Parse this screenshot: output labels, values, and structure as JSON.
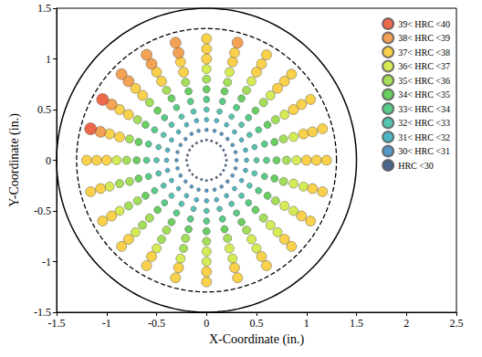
{
  "chart_data": {
    "type": "scatter",
    "xlabel": "X-Coordinate (in.)",
    "ylabel": "Y-Coordinate (in.)",
    "xlim": [
      -1.5,
      2.5
    ],
    "xticks": [
      -1.5,
      -1,
      -0.5,
      0,
      0.5,
      1,
      1.5,
      2,
      2.5
    ],
    "ylim": [
      -1.5,
      1.5
    ],
    "yticks": [
      -1.5,
      -1,
      -0.5,
      0,
      0.5,
      1,
      1.5
    ],
    "grid": false,
    "legend": "top-right",
    "marker": "circle",
    "circles": [
      {
        "radius": 1.5,
        "line_style": "solid"
      },
      {
        "radius": 1.3,
        "line_style": "dashed"
      }
    ],
    "series": [
      {
        "name": "39< HRC <40",
        "color": "#e8431b",
        "x": [
          -1.04,
          -1.16
        ],
        "values": [
          0.6,
          0.31
        ]
      },
      {
        "name": "38< HRC <39",
        "color": "#f08a2b",
        "x": [
          -0.28,
          -0.55,
          -0.78,
          -0.95,
          -1.06,
          0.31,
          -0.31,
          -0.6,
          -0.85
        ],
        "values": [
          1.06,
          0.95,
          0.78,
          0.55,
          0.28,
          1.16,
          1.16,
          1.04,
          0.85
        ]
      },
      {
        "name": "37< HRC <38",
        "color": "#f7c51e",
        "x": [
          -0.23,
          -0.45,
          -0.64,
          -0.78,
          -0.87,
          1,
          0.97,
          0.87,
          0.71,
          0.5,
          0.26,
          0,
          -1,
          -0.26,
          -0.5,
          -0.71,
          -0.87,
          -0.97,
          1.1,
          1.06,
          0.95,
          0.78,
          0.55,
          0.28,
          0,
          -1.1,
          -1.06,
          -0.95,
          -0.78,
          -0.55,
          -0.28,
          0,
          0.28,
          0.55,
          0.78,
          0.95,
          1.06,
          1.2,
          1.16,
          1.04,
          0.85,
          0.6,
          0,
          -1.2,
          -1.16,
          -1.04,
          -0.85,
          -0.6,
          -0.31,
          0,
          0.31,
          0.6,
          0.85,
          1.04,
          1.16
        ],
        "values": [
          0.87,
          0.78,
          0.64,
          0.45,
          0.23,
          0,
          0.26,
          0.5,
          0.71,
          0.87,
          0.97,
          1,
          0,
          0.97,
          0.87,
          0.71,
          0.5,
          0.26,
          0,
          0.28,
          0.55,
          0.78,
          0.95,
          1.06,
          1.1,
          0,
          -0.28,
          -0.55,
          -0.78,
          -0.95,
          -1.06,
          -1.1,
          -1.06,
          -0.95,
          -0.78,
          -0.55,
          -0.28,
          0,
          0.31,
          0.6,
          0.85,
          1.04,
          1.2,
          0,
          -0.31,
          -0.6,
          -0.85,
          -1.04,
          -1.16,
          -1.2,
          -1.16,
          -1.04,
          -0.85,
          -0.6,
          -0.31
        ]
      },
      {
        "name": "36< HRC <37",
        "color": "#cce62a",
        "x": [
          0.9,
          0.87,
          0.78,
          0.64,
          0.45,
          0.23,
          0,
          -0.9,
          0,
          0.23,
          0.45,
          0.64,
          0.78,
          0.87,
          -0.97,
          -0.87,
          -0.71,
          -0.5,
          -0.26,
          0,
          0.26,
          0.5,
          0.71,
          0.87,
          0.97
        ],
        "values": [
          0,
          0.23,
          0.45,
          0.64,
          0.78,
          0.87,
          0.9,
          0,
          -0.9,
          -0.87,
          -0.78,
          -0.64,
          -0.45,
          -0.23,
          -0.26,
          -0.5,
          -0.71,
          -0.87,
          -0.97,
          -1,
          -0.97,
          -0.87,
          -0.71,
          -0.5,
          -0.26
        ]
      },
      {
        "name": "35< HRC <36",
        "color": "#8fd630",
        "x": [
          0.8,
          0.77,
          0.69,
          0.57,
          0.4,
          0.21,
          0,
          -0.21,
          -0.4,
          -0.57,
          -0.69,
          -0.77,
          -0.8,
          -0.77,
          -0.69,
          -0.57,
          -0.4,
          -0.21,
          0,
          0.21,
          0.4,
          0.57,
          0.69,
          0.77,
          -0.87,
          -0.78,
          -0.64,
          -0.45,
          -0.23
        ],
        "values": [
          0,
          0.21,
          0.4,
          0.57,
          0.69,
          0.77,
          0.8,
          0.77,
          0.69,
          0.57,
          0.4,
          0.21,
          0,
          -0.21,
          -0.4,
          -0.57,
          -0.69,
          -0.77,
          -0.8,
          -0.77,
          -0.69,
          -0.57,
          -0.4,
          -0.21,
          -0.23,
          -0.45,
          -0.64,
          -0.78,
          -0.87
        ]
      },
      {
        "name": "34< HRC <35",
        "color": "#45c23a",
        "x": [
          0.7,
          0.68,
          0.61,
          0.49,
          0.35,
          0.18,
          0,
          -0.18,
          -0.35,
          -0.49,
          -0.61,
          -0.68,
          -0.7,
          -0.68,
          -0.61,
          -0.49,
          -0.35,
          -0.18,
          0,
          0.18,
          0.35,
          0.49,
          0.61,
          0.68
        ],
        "values": [
          0,
          0.18,
          0.35,
          0.49,
          0.61,
          0.68,
          0.7,
          0.68,
          0.61,
          0.49,
          0.35,
          0.18,
          0,
          -0.18,
          -0.35,
          -0.49,
          -0.61,
          -0.68,
          -0.7,
          -0.68,
          -0.61,
          -0.49,
          -0.35,
          -0.18
        ]
      },
      {
        "name": "33< HRC <34",
        "color": "#2fbf6a",
        "x": [
          0.6,
          0.58,
          0.52,
          0.42,
          0.3,
          0.16,
          0,
          -0.16,
          -0.3,
          -0.42,
          -0.52,
          -0.58,
          -0.6,
          -0.58,
          -0.52,
          -0.42,
          -0.3,
          -0.16,
          0,
          0.16,
          0.3,
          0.42,
          0.52,
          0.58
        ],
        "values": [
          0,
          0.16,
          0.3,
          0.42,
          0.52,
          0.58,
          0.6,
          0.58,
          0.52,
          0.42,
          0.3,
          0.16,
          0,
          -0.16,
          -0.3,
          -0.42,
          -0.52,
          -0.58,
          -0.6,
          -0.58,
          -0.52,
          -0.42,
          -0.3,
          -0.16
        ]
      },
      {
        "name": "32< HRC <33",
        "color": "#2bb59a",
        "x": [
          0.5,
          0.48,
          0.43,
          0.35,
          0.25,
          0.13,
          0,
          -0.13,
          -0.25,
          -0.35,
          -0.43,
          -0.48,
          -0.5,
          -0.48,
          -0.43,
          -0.35,
          -0.25,
          -0.13,
          0,
          0.13,
          0.25,
          0.35,
          0.43,
          0.48
        ],
        "values": [
          0,
          0.13,
          0.25,
          0.35,
          0.43,
          0.48,
          0.5,
          0.48,
          0.43,
          0.35,
          0.25,
          0.13,
          0,
          -0.13,
          -0.25,
          -0.35,
          -0.43,
          -0.48,
          -0.5,
          -0.48,
          -0.43,
          -0.35,
          -0.25,
          -0.13
        ]
      },
      {
        "name": "31< HRC <32",
        "color": "#22a3b5",
        "x": [
          0.4,
          0.39,
          0.35,
          0.28,
          0.2,
          0.1,
          0,
          -0.1,
          -0.2,
          -0.28,
          -0.35,
          -0.39,
          -0.4,
          -0.39,
          -0.35,
          -0.28,
          -0.2,
          -0.1,
          0,
          0.1,
          0.2,
          0.28,
          0.35,
          0.39
        ],
        "values": [
          0,
          0.1,
          0.2,
          0.28,
          0.35,
          0.39,
          0.4,
          0.39,
          0.35,
          0.28,
          0.2,
          0.1,
          0,
          -0.1,
          -0.2,
          -0.28,
          -0.35,
          -0.39,
          -0.4,
          -0.39,
          -0.35,
          -0.28,
          -0.2,
          -0.1
        ]
      },
      {
        "name": "30< HRC <31",
        "color": "#2a7db8",
        "x": [
          0.3,
          0.29,
          0.26,
          0.21,
          0.15,
          0.08,
          0,
          -0.08,
          -0.15,
          -0.21,
          -0.26,
          -0.29,
          -0.3,
          -0.29,
          -0.26,
          -0.21,
          -0.15,
          -0.08,
          0,
          0.08,
          0.15,
          0.21,
          0.26,
          0.29
        ],
        "values": [
          0,
          0.08,
          0.15,
          0.21,
          0.26,
          0.29,
          0.3,
          0.29,
          0.26,
          0.21,
          0.15,
          0.08,
          0,
          -0.08,
          -0.15,
          -0.21,
          -0.26,
          -0.29,
          -0.3,
          -0.29,
          -0.26,
          -0.21,
          -0.15,
          -0.08
        ]
      },
      {
        "name": "HRC <30",
        "color": "#1b3f6e",
        "x": [
          0.2,
          0.19,
          0.17,
          0.14,
          0.1,
          0.05,
          0,
          -0.05,
          -0.1,
          -0.14,
          -0.17,
          -0.19,
          -0.2,
          -0.19,
          -0.17,
          -0.14,
          -0.1,
          -0.05,
          0,
          0.05,
          0.1,
          0.14,
          0.17,
          0.19
        ],
        "values": [
          0,
          0.05,
          0.1,
          0.14,
          0.17,
          0.19,
          0.2,
          0.19,
          0.17,
          0.14,
          0.1,
          0.05,
          0,
          -0.05,
          -0.1,
          -0.14,
          -0.17,
          -0.19,
          -0.2,
          -0.19,
          -0.17,
          -0.14,
          -0.1,
          -0.05
        ]
      }
    ]
  }
}
